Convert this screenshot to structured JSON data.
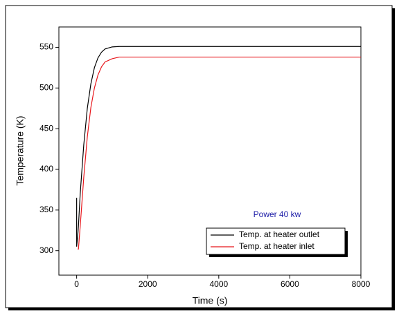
{
  "chart_data": {
    "type": "line",
    "x_label": "Time (s)",
    "y_label": "Temperature (K)",
    "annotation": "Power 40 kw",
    "annotation_color": "#1a1aa6",
    "x": [
      0,
      0,
      30,
      50,
      100,
      200,
      300,
      400,
      500,
      600,
      700,
      800,
      1000,
      1200,
      1500,
      8000
    ],
    "series": [
      {
        "name": "Temp. at heater outlet",
        "color": "#000000",
        "values": [
          365,
          305,
          318,
          330,
          370,
          430,
          475,
          505,
          525,
          537,
          544,
          548,
          550.5,
          551,
          551,
          551
        ]
      },
      {
        "name": "Temp. at heater inlet",
        "color": "#e8161b",
        "values": [
          null,
          null,
          302,
          302,
          330,
          390,
          440,
          476,
          500,
          516,
          526,
          532,
          536,
          538,
          538,
          538
        ]
      }
    ],
    "xlim": [
      -500,
      8000
    ],
    "xticks": [
      0,
      2000,
      4000,
      6000,
      8000
    ],
    "ylim": [
      270,
      575
    ],
    "yticks": [
      300,
      350,
      400,
      450,
      500,
      550
    ],
    "legend": "lower-right",
    "grid": false
  }
}
